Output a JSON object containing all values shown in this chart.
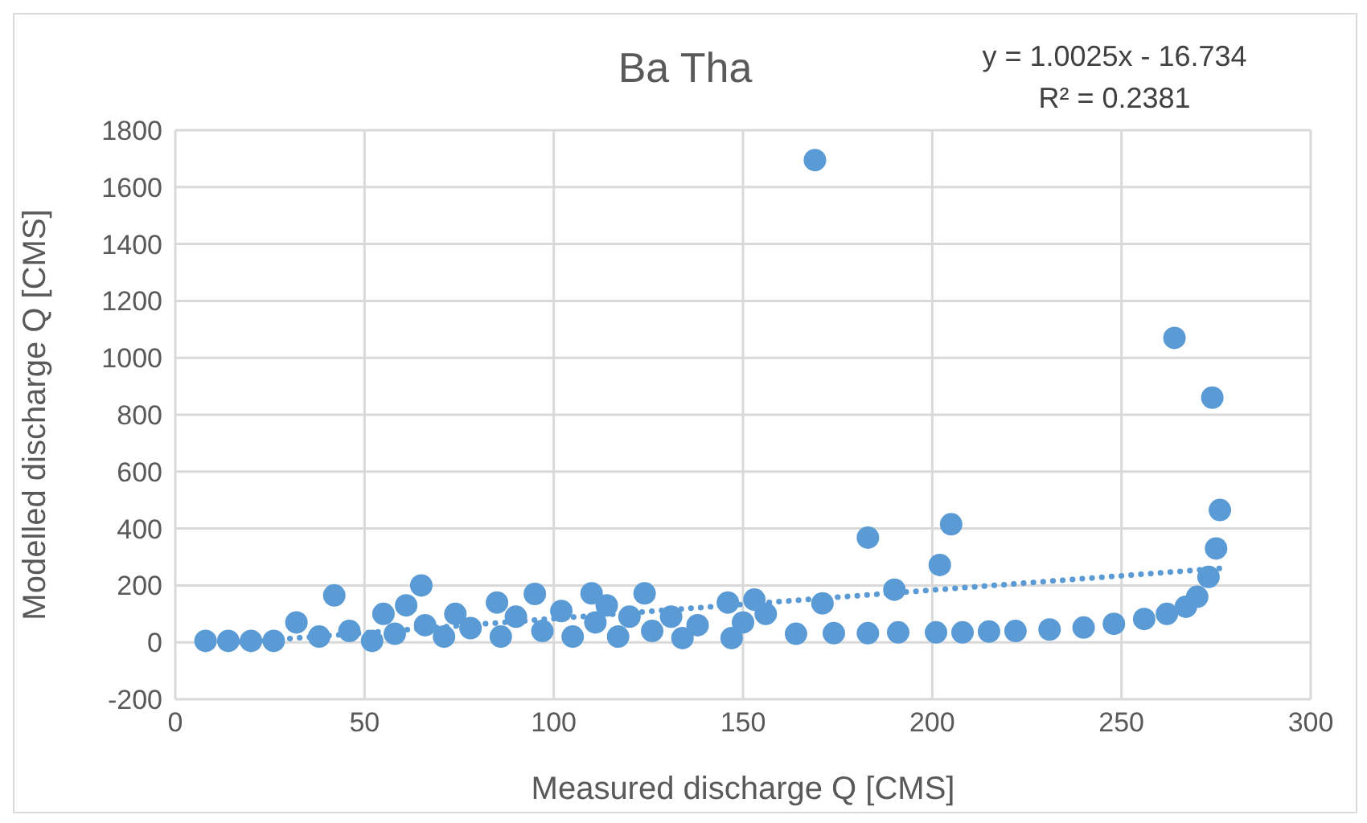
{
  "chart_data": {
    "type": "scatter",
    "title": "Ba Tha",
    "xlabel": "Measured discharge Q [CMS]",
    "ylabel": "Modelled discharge Q [CMS]",
    "annotations": [
      "y = 1.0025x - 16.734",
      "R² = 0.2381"
    ],
    "xlim": [
      0,
      300
    ],
    "xticks": [
      0,
      50,
      100,
      150,
      200,
      250,
      300
    ],
    "ylim": [
      -200,
      1800
    ],
    "yticks": [
      -200,
      0,
      200,
      400,
      600,
      800,
      1000,
      1200,
      1400,
      1600,
      1800
    ],
    "grid": true,
    "legend": false,
    "series": [
      {
        "type": "scatter",
        "color": "#5b9bd5",
        "marker": "circle",
        "x": [
          8,
          14,
          20,
          26,
          32,
          38,
          42,
          46,
          52,
          55,
          58,
          61,
          65,
          66,
          71,
          74,
          78,
          85,
          86,
          90,
          95,
          97,
          102,
          105,
          110,
          111,
          114,
          117,
          120,
          124,
          126,
          131,
          134,
          138,
          146,
          147,
          150,
          153,
          156,
          164,
          169,
          171,
          174,
          183,
          183,
          190,
          191,
          201,
          202,
          205,
          208,
          215,
          222,
          231,
          240,
          248,
          256,
          262,
          264,
          267,
          270,
          273,
          274,
          275,
          276
        ],
        "values": [
          5,
          5,
          5,
          5,
          70,
          20,
          165,
          40,
          5,
          100,
          30,
          130,
          200,
          60,
          20,
          100,
          50,
          140,
          20,
          90,
          170,
          40,
          110,
          20,
          172,
          70,
          130,
          20,
          90,
          172,
          40,
          90,
          15,
          60,
          140,
          15,
          70,
          150,
          100,
          30,
          1695,
          137,
          32,
          368,
          32,
          185,
          35,
          35,
          272,
          415,
          35,
          38,
          40,
          45,
          52,
          65,
          82,
          100,
          1070,
          125,
          160,
          230,
          860,
          330,
          465
        ]
      },
      {
        "type": "line",
        "color": "#5b9bd5",
        "line_style": "dotted",
        "marker": "none",
        "x": [
          7,
          276
        ],
        "values": [
          -10,
          260
        ]
      }
    ]
  }
}
